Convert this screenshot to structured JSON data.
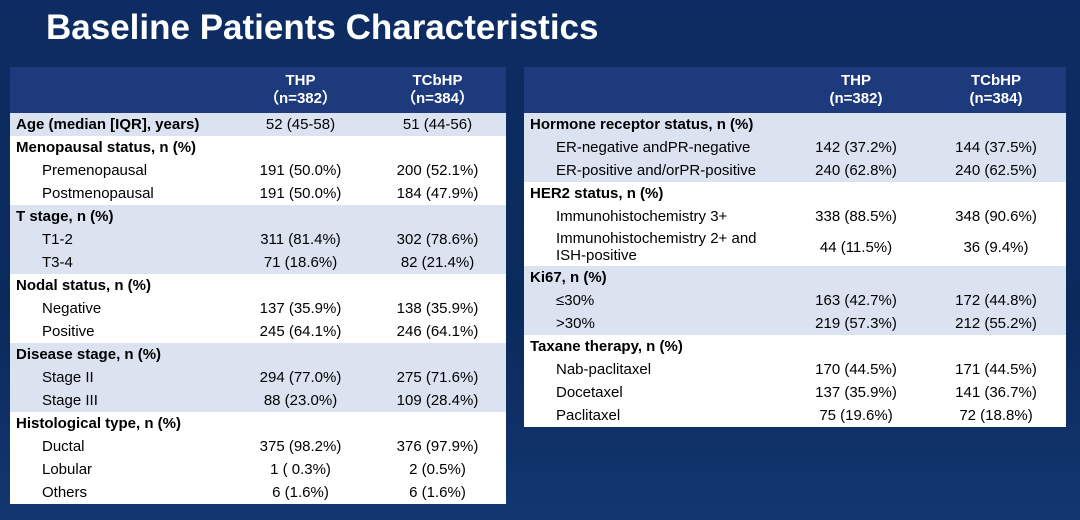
{
  "title": "Baseline Patients Characteristics",
  "left_table": {
    "headers": [
      {
        "name": "THP",
        "n": "（n=382）"
      },
      {
        "name": "TCbHP",
        "n": "（n=384）"
      }
    ],
    "groups": [
      {
        "label": "Age (median [IQR], years)",
        "values": [
          "52 (45-58)",
          "51 (44-56)"
        ],
        "rows": []
      },
      {
        "label": "Menopausal status, n (%)",
        "rows": [
          {
            "label": "Premenopausal",
            "values": [
              "191 (50.0%)",
              "200 (52.1%)"
            ]
          },
          {
            "label": "Postmenopausal",
            "values": [
              "191 (50.0%)",
              "184 (47.9%)"
            ]
          }
        ]
      },
      {
        "label": "T stage, n (%)",
        "rows": [
          {
            "label": "T1-2",
            "values": [
              "311 (81.4%)",
              "302 (78.6%)"
            ]
          },
          {
            "label": "T3-4",
            "values": [
              "71 (18.6%)",
              "82 (21.4%)"
            ]
          }
        ]
      },
      {
        "label": "Nodal status, n (%)",
        "rows": [
          {
            "label": "Negative",
            "values": [
              "137 (35.9%)",
              "138 (35.9%)"
            ]
          },
          {
            "label": "Positive",
            "values": [
              "245 (64.1%)",
              "246 (64.1%)"
            ]
          }
        ]
      },
      {
        "label": "Disease stage, n (%)",
        "rows": [
          {
            "label": "Stage II",
            "values": [
              "294 (77.0%)",
              "275 (71.6%)"
            ]
          },
          {
            "label": "Stage III",
            "values": [
              "88 (23.0%)",
              "109 (28.4%)"
            ]
          }
        ]
      },
      {
        "label": "Histological type, n (%)",
        "rows": [
          {
            "label": "Ductal",
            "values": [
              "375 (98.2%)",
              "376 (97.9%)"
            ]
          },
          {
            "label": "Lobular",
            "values": [
              "1 ( 0.3%)",
              "2 (0.5%)"
            ]
          },
          {
            "label": "Others",
            "values": [
              "6 (1.6%)",
              "6 (1.6%)"
            ]
          }
        ]
      }
    ]
  },
  "right_table": {
    "headers": [
      {
        "name": "THP",
        "n": "(n=382)"
      },
      {
        "name": "TCbHP",
        "n": "(n=384)"
      }
    ],
    "groups": [
      {
        "label": "Hormone receptor status, n (%)",
        "rows": [
          {
            "label": "ER-negative andPR-negative",
            "values": [
              "142 (37.2%)",
              "144 (37.5%)"
            ]
          },
          {
            "label": "ER-positive and/orPR-positive",
            "values": [
              "240 (62.8%)",
              "240 (62.5%)"
            ]
          }
        ]
      },
      {
        "label": "HER2 status, n (%)",
        "rows": [
          {
            "label": "Immunohistochemistry 3+",
            "values": [
              "338 (88.5%)",
              "348 (90.6%)"
            ]
          },
          {
            "label": "Immunohistochemistry 2+ and ISH-positive",
            "values": [
              "44 (11.5%)",
              "36 (9.4%)"
            ]
          }
        ]
      },
      {
        "label": "Ki67, n (%)",
        "rows": [
          {
            "label": "≤30%",
            "values": [
              "163 (42.7%)",
              "172 (44.8%)"
            ]
          },
          {
            "label": ">30%",
            "values": [
              "219 (57.3%)",
              "212 (55.2%)"
            ]
          }
        ]
      },
      {
        "label": "Taxane therapy, n (%)",
        "rows": [
          {
            "label": "Nab-paclitaxel",
            "values": [
              "170 (44.5%)",
              "171 (44.5%)"
            ]
          },
          {
            "label": "Docetaxel",
            "values": [
              "137 (35.9%)",
              "141 (36.7%)"
            ]
          },
          {
            "label": "Paclitaxel",
            "values": [
              "75 (19.6%)",
              "72 (18.8%)"
            ]
          }
        ]
      }
    ]
  }
}
